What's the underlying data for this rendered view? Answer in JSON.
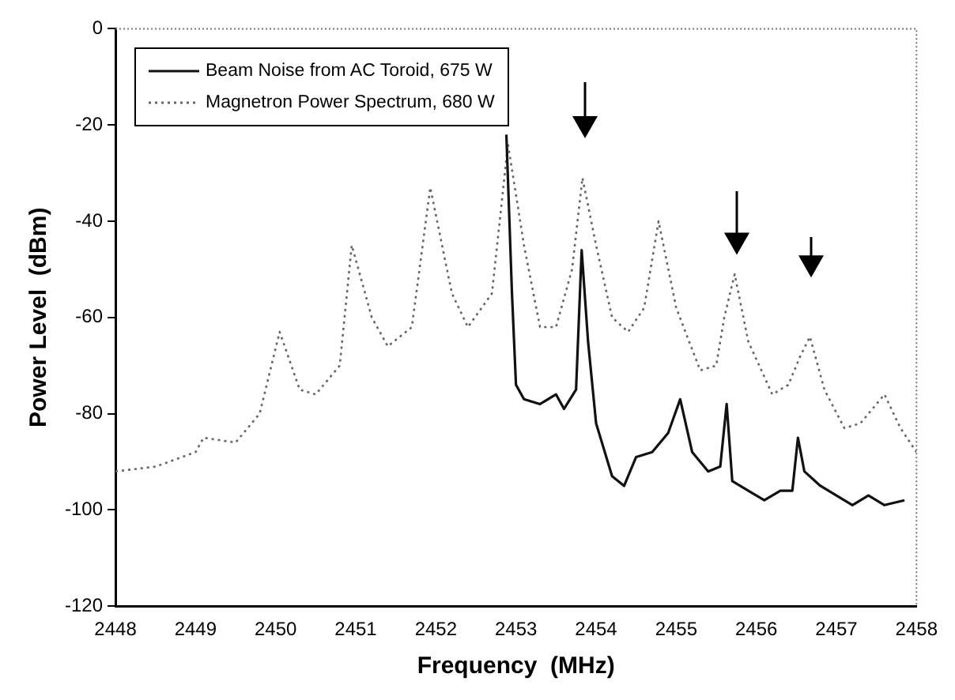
{
  "chart_data": {
    "type": "line",
    "xlabel": "Frequency  (MHz)",
    "ylabel": "Power Level  (dBm)",
    "xlim": [
      2448,
      2458
    ],
    "xticks": [
      2448,
      2449,
      2450,
      2451,
      2452,
      2453,
      2454,
      2455,
      2456,
      2457,
      2458
    ],
    "ylim": [
      -120,
      0
    ],
    "yticks": [
      -120,
      -100,
      -80,
      -60,
      -40,
      -20,
      0
    ],
    "grid": false,
    "legend": "top left",
    "marker": "none",
    "series": [
      {
        "name": "Beam Noise from AC Toroid, 675 W",
        "color": "#111111",
        "line_style": "solid",
        "x": [
          2452.88,
          2452.95,
          2453.0,
          2453.1,
          2453.3,
          2453.5,
          2453.6,
          2453.75,
          2453.82,
          2453.9,
          2454.0,
          2454.2,
          2454.35,
          2454.5,
          2454.7,
          2454.9,
          2455.05,
          2455.2,
          2455.4,
          2455.55,
          2455.63,
          2455.7,
          2455.9,
          2456.1,
          2456.3,
          2456.45,
          2456.52,
          2456.6,
          2456.8,
          2457.0,
          2457.2,
          2457.4,
          2457.6,
          2457.85
        ],
        "values": [
          -22,
          -55,
          -74,
          -77,
          -78,
          -76,
          -79,
          -75,
          -46,
          -65,
          -82,
          -93,
          -95,
          -89,
          -88,
          -84,
          -77,
          -88,
          -92,
          -91,
          -78,
          -94,
          -96,
          -98,
          -96,
          -96,
          -85,
          -92,
          -95,
          -97,
          -99,
          -97,
          -99,
          -98
        ]
      },
      {
        "name": "Magnetron Power Spectrum, 680 W",
        "color": "#666666",
        "line_style": "dotted",
        "x": [
          2448,
          2448.5,
          2449,
          2449.1,
          2449.5,
          2449.8,
          2450.05,
          2450.3,
          2450.5,
          2450.8,
          2450.95,
          2451.2,
          2451.4,
          2451.7,
          2451.93,
          2452.2,
          2452.4,
          2452.7,
          2452.9,
          2453.1,
          2453.3,
          2453.5,
          2453.7,
          2453.83,
          2454.0,
          2454.2,
          2454.4,
          2454.6,
          2454.78,
          2455.0,
          2455.3,
          2455.5,
          2455.6,
          2455.73,
          2455.9,
          2456.2,
          2456.4,
          2456.55,
          2456.67,
          2456.85,
          2457.1,
          2457.3,
          2457.5,
          2457.6,
          2457.8,
          2458
        ],
        "values": [
          -92,
          -91,
          -88,
          -85,
          -86,
          -80,
          -63,
          -75,
          -76,
          -70,
          -45,
          -60,
          -66,
          -62,
          -33,
          -55,
          -62,
          -55,
          -24,
          -45,
          -62,
          -62,
          -50,
          -31,
          -45,
          -60,
          -63,
          -58,
          -40,
          -58,
          -71,
          -70,
          -60,
          -51,
          -65,
          -76,
          -74,
          -68,
          -64,
          -75,
          -83,
          -82,
          -78,
          -76,
          -83,
          -88
        ]
      }
    ]
  }
}
